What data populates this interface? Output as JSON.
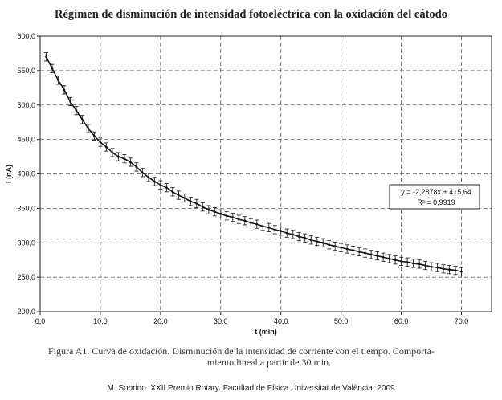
{
  "chart_data": {
    "type": "line",
    "title": "Régimen de disminución de intensidad fotoeléctrica con la oxidación del cátodo",
    "xlabel": "t (min)",
    "ylabel": "I (nA)",
    "xlim": [
      0,
      75
    ],
    "ylim": [
      200,
      600
    ],
    "x_ticks": [
      "0,0",
      "10,0",
      "20,0",
      "30,0",
      "40,0",
      "50,0",
      "60,0",
      "70,0"
    ],
    "y_ticks": [
      "200,0",
      "250,0",
      "300,0",
      "350,0",
      "400,0",
      "450,0",
      "500,0",
      "550,0",
      "600,0"
    ],
    "grid": true,
    "error_bars": 6,
    "series": [
      {
        "x": [
          1,
          2,
          3,
          4,
          5,
          6,
          7,
          8,
          9,
          10,
          11,
          12,
          13,
          14,
          15,
          16,
          17,
          18,
          19,
          20,
          21,
          22,
          23,
          24,
          25,
          26,
          27,
          28,
          29,
          30,
          31,
          32,
          33,
          34,
          35,
          36,
          37,
          38,
          39,
          40,
          41,
          42,
          43,
          44,
          45,
          46,
          47,
          48,
          49,
          50,
          51,
          52,
          53,
          54,
          55,
          56,
          57,
          58,
          59,
          60,
          61,
          62,
          63,
          64,
          65,
          66,
          67,
          68,
          69,
          70
        ],
        "values": [
          570,
          553,
          536,
          522,
          505,
          492,
          479,
          466,
          455,
          446,
          439,
          431,
          425,
          422,
          417,
          410,
          402,
          395,
          389,
          384,
          380,
          374,
          369,
          365,
          360,
          357,
          352,
          348,
          345,
          342,
          339,
          337,
          334,
          332,
          329,
          327,
          324,
          322,
          319,
          317,
          314,
          312,
          309,
          307,
          304,
          302,
          300,
          297,
          295,
          293,
          291,
          289,
          287,
          285,
          283,
          281,
          279,
          277,
          275,
          273,
          272,
          270,
          269,
          267,
          265,
          264,
          262,
          261,
          260,
          258
        ]
      }
    ],
    "annotations": [
      {
        "text_line1": "y = -2,2878x + 415,64",
        "text_line2": "R² = 0,9919"
      }
    ]
  },
  "caption": {
    "line1": "Figura A1. Curva de oxidación. Disminución de la intensidad de corriente con el tiempo. Comporta-",
    "line2": "miento lineal a partir de 30 min."
  },
  "credit": "M. Sobrino. XXII Premio Rotary. Facultad de Física Universitat de València. 2009"
}
